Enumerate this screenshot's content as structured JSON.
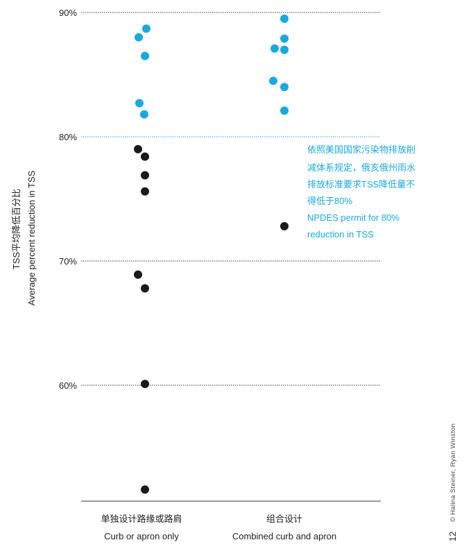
{
  "chart_data": {
    "type": "scatter",
    "categories": [
      {
        "label_cn": "单独设计路缘或路肩",
        "label_en": "Curb or apron only"
      },
      {
        "label_cn": "组合设计",
        "label_en": "Combined curb and apron"
      }
    ],
    "series": [
      {
        "category_index": 0,
        "points": [
          88.0,
          88.7,
          86.5,
          82.7,
          81.8,
          79.0,
          78.4,
          76.9,
          75.6,
          68.9,
          67.8,
          60.1,
          51.6
        ]
      },
      {
        "category_index": 1,
        "points": [
          89.5,
          87.9,
          87.1,
          87.0,
          84.5,
          84.0,
          82.1,
          72.8
        ]
      }
    ],
    "highlight_threshold": 80,
    "colors": {
      "above": "#1aa9de",
      "below": "#1a1a1a",
      "threshold_line": "#1aa9de",
      "grid": "#333333"
    },
    "yticks": [
      {
        "value": 90,
        "label": "90%",
        "highlight": false
      },
      {
        "value": 80,
        "label": "80%",
        "highlight": true
      },
      {
        "value": 70,
        "label": "70%",
        "highlight": false
      },
      {
        "value": 60,
        "label": "60%",
        "highlight": false
      }
    ],
    "ylim": [
      50.5,
      90
    ],
    "ylabel_cn": "TSS平均降低百分比",
    "ylabel_en": "Average percent reduction in TSS",
    "annotation": {
      "lines": [
        "依照美国国家污染物排放削",
        "减体系规定，俄亥俄州雨水",
        "排放标准要求TSS降低量不",
        "得低于80%",
        "NPDES permit for 80%",
        "reduction in TSS"
      ]
    }
  },
  "credit": "© Halina Steiner, Ryan Winston",
  "page_number": "12"
}
